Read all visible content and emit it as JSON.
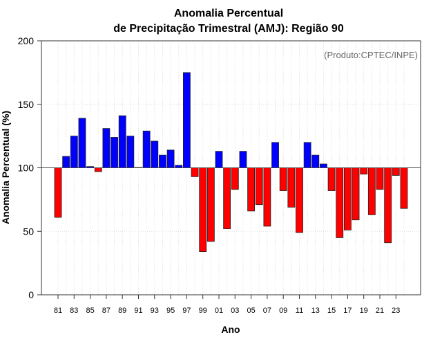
{
  "chart_data": {
    "type": "bar",
    "title": "Anomalia Percentual",
    "subtitle": "de Precipitação Trimestral (AMJ): Região 90",
    "xlabel": "Ano",
    "ylabel": "Anomalia Percentual (%)",
    "annotation": "(Produto:CPTEC/INPE)",
    "ylim": [
      0,
      200
    ],
    "yticks": [
      "0",
      "50",
      "100",
      "150",
      "200"
    ],
    "ytick_values": [
      0,
      50,
      100,
      150,
      200
    ],
    "baseline": 100,
    "grid": true,
    "categories": [
      "81",
      "82",
      "83",
      "84",
      "85",
      "86",
      "87",
      "88",
      "89",
      "90",
      "91",
      "92",
      "93",
      "94",
      "95",
      "96",
      "97",
      "98",
      "99",
      "00",
      "01",
      "02",
      "03",
      "04",
      "05",
      "06",
      "07",
      "08",
      "09",
      "10",
      "11",
      "12",
      "13",
      "14",
      "15",
      "16",
      "17",
      "18",
      "19",
      "20",
      "21",
      "22",
      "23",
      "24"
    ],
    "xtick_labels": [
      "81",
      "83",
      "85",
      "87",
      "89",
      "91",
      "93",
      "95",
      "97",
      "99",
      "01",
      "03",
      "05",
      "07",
      "09",
      "11",
      "13",
      "15",
      "17",
      "19",
      "21",
      "23"
    ],
    "values": [
      61,
      109,
      125,
      139,
      101,
      97,
      131,
      124,
      141,
      125,
      100.3,
      129,
      121,
      110,
      114,
      102,
      175,
      93,
      34,
      42,
      113,
      52,
      83,
      113,
      66,
      71,
      54,
      120,
      82,
      69,
      49,
      120,
      110,
      103,
      82,
      45,
      51,
      59,
      95,
      63,
      83,
      41,
      94,
      68
    ],
    "colors": {
      "above": "#0000ff",
      "below": "#ff0000"
    }
  }
}
